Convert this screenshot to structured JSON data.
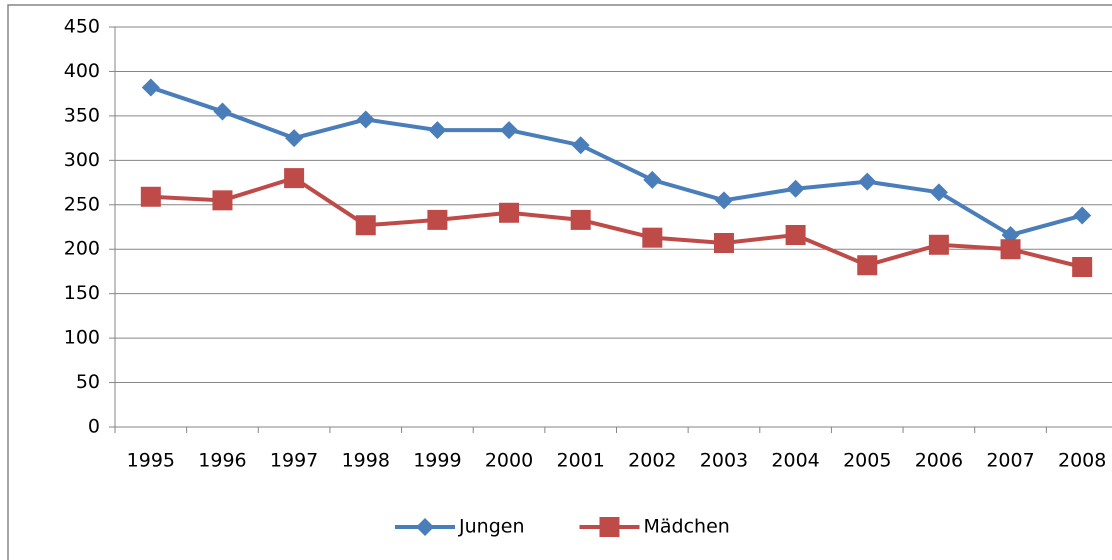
{
  "chart_data": {
    "type": "line",
    "categories": [
      "1995",
      "1996",
      "1997",
      "1998",
      "1999",
      "2000",
      "2001",
      "2002",
      "2003",
      "2004",
      "2005",
      "2006",
      "2007",
      "2008"
    ],
    "series": [
      {
        "name": "Jungen",
        "color": "#4a7ebb",
        "marker": "diamond",
        "values": [
          382,
          355,
          325,
          346,
          334,
          334,
          317,
          278,
          255,
          268,
          276,
          264,
          216,
          238
        ]
      },
      {
        "name": "Mädchen",
        "color": "#be4b48",
        "marker": "square",
        "values": [
          259,
          255,
          280,
          227,
          233,
          241,
          233,
          213,
          207,
          216,
          182,
          205,
          200,
          180
        ]
      }
    ],
    "ylim": [
      0,
      450
    ],
    "yticks": [
      0,
      50,
      100,
      150,
      200,
      250,
      300,
      350,
      400,
      450
    ],
    "grid": true,
    "legend": "bottom"
  }
}
